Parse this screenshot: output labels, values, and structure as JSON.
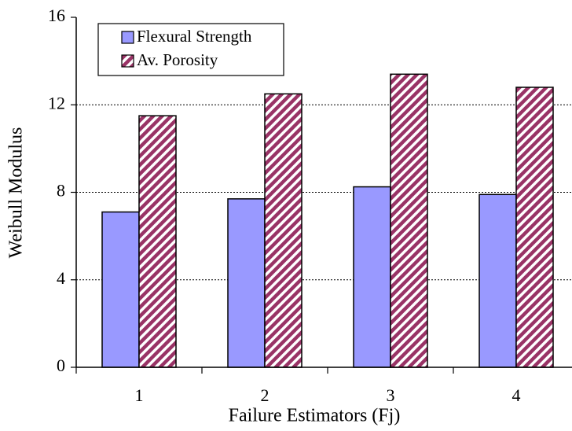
{
  "chart_data": {
    "type": "bar",
    "xlabel": "Failure Estimators (Fj)",
    "ylabel": "Weibull Modulus",
    "categories": [
      "1",
      "2",
      "3",
      "4"
    ],
    "series": [
      {
        "name": "Flexural Strength",
        "color": "#9999ff",
        "values": [
          7.1,
          7.7,
          8.25,
          7.9
        ]
      },
      {
        "name": "Av. Porosity",
        "color": "#993366",
        "hatch": true,
        "values": [
          11.5,
          12.5,
          13.4,
          12.8
        ]
      }
    ],
    "ylim": [
      0,
      16
    ],
    "yticks": [
      0,
      4,
      8,
      12,
      16
    ],
    "grid": true,
    "legend": "upper left"
  }
}
